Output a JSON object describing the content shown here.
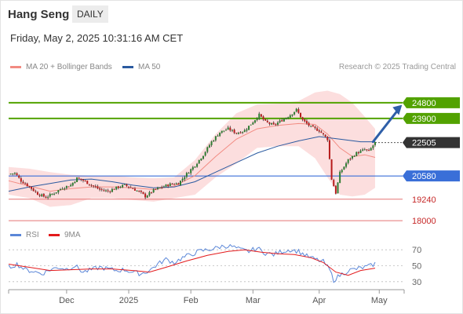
{
  "header": {
    "instrument": "Hang Seng",
    "period": "DAILY",
    "datetime": "Friday, May 2, 2025 10:31:16 AM CET",
    "credit": "Research © 2025 Trading Central"
  },
  "colors": {
    "up": "#2e7d32",
    "down": "#b71c1c",
    "ma20": "#f28b82",
    "band": "#fcd8d8",
    "ma50": "#2b5aa0",
    "resistance": "#52a200",
    "support_blue": "#3a6fd8",
    "support_red": "#e57373",
    "rsi": "#5b87d8",
    "rsi_ma": "#e31a1c"
  },
  "chart_data": [
    {
      "type": "line",
      "title": "",
      "legend": [
        {
          "name": "MA 20 + Bollinger Bands",
          "color": "#f28b82"
        },
        {
          "name": "MA 50",
          "color": "#2b5aa0"
        }
      ],
      "x_tick_labels": [
        "Dec",
        "2025",
        "Feb",
        "Mar",
        "Apr",
        "May"
      ],
      "ylim": [
        17600,
        26200
      ],
      "price_levels": [
        {
          "label": "24800",
          "value": 24800,
          "style": "resistance"
        },
        {
          "label": "23900",
          "value": 23900,
          "style": "resistance"
        },
        {
          "label": "22505",
          "value": 22505,
          "style": "current"
        },
        {
          "label": "20580",
          "value": 20580,
          "style": "support_blue"
        },
        {
          "label": "19240",
          "value": 19240,
          "style": "support_red"
        },
        {
          "label": "18000",
          "value": 18000,
          "style": "support_red"
        }
      ],
      "price_path": [
        [
          0,
          20690
        ],
        [
          3,
          20750
        ],
        [
          6,
          20300
        ],
        [
          10,
          19960
        ],
        [
          14,
          19550
        ],
        [
          18,
          19350
        ],
        [
          22,
          19600
        ],
        [
          26,
          19900
        ],
        [
          30,
          20050
        ],
        [
          33,
          20450
        ],
        [
          36,
          20320
        ],
        [
          40,
          20050
        ],
        [
          44,
          19800
        ],
        [
          48,
          19700
        ],
        [
          52,
          19900
        ],
        [
          56,
          20050
        ],
        [
          60,
          19850
        ],
        [
          64,
          19600
        ],
        [
          66,
          19400
        ],
        [
          70,
          19750
        ],
        [
          74,
          19950
        ],
        [
          78,
          20100
        ],
        [
          82,
          20150
        ],
        [
          86,
          20700
        ],
        [
          90,
          21200
        ],
        [
          94,
          21800
        ],
        [
          98,
          22550
        ],
        [
          102,
          23100
        ],
        [
          106,
          23300
        ],
        [
          110,
          23050
        ],
        [
          114,
          23200
        ],
        [
          118,
          23700
        ],
        [
          121,
          24100
        ],
        [
          124,
          23700
        ],
        [
          128,
          23500
        ],
        [
          132,
          23800
        ],
        [
          136,
          24100
        ],
        [
          139,
          24400
        ],
        [
          142,
          23800
        ],
        [
          146,
          23400
        ],
        [
          150,
          23200
        ],
        [
          154,
          22700
        ],
        [
          156,
          20400
        ],
        [
          158,
          19600
        ],
        [
          160,
          20750
        ],
        [
          164,
          21500
        ],
        [
          168,
          21900
        ],
        [
          172,
          22100
        ],
        [
          174,
          22000
        ],
        [
          177,
          22505
        ]
      ],
      "ma20_path": [
        [
          0,
          20300
        ],
        [
          10,
          20000
        ],
        [
          20,
          19700
        ],
        [
          30,
          19850
        ],
        [
          40,
          19950
        ],
        [
          50,
          19950
        ],
        [
          60,
          19900
        ],
        [
          70,
          19800
        ],
        [
          80,
          20000
        ],
        [
          90,
          20600
        ],
        [
          100,
          21700
        ],
        [
          110,
          22700
        ],
        [
          120,
          23300
        ],
        [
          130,
          23500
        ],
        [
          140,
          23600
        ],
        [
          148,
          23550
        ],
        [
          154,
          23000
        ],
        [
          160,
          22200
        ],
        [
          166,
          21700
        ],
        [
          172,
          21800
        ],
        [
          177,
          21650
        ]
      ],
      "band_upper": [
        [
          0,
          21100
        ],
        [
          10,
          21000
        ],
        [
          20,
          20800
        ],
        [
          30,
          20650
        ],
        [
          40,
          20600
        ],
        [
          50,
          20600
        ],
        [
          60,
          20500
        ],
        [
          70,
          20450
        ],
        [
          80,
          20500
        ],
        [
          90,
          21500
        ],
        [
          100,
          23000
        ],
        [
          110,
          24200
        ],
        [
          120,
          24700
        ],
        [
          130,
          24750
        ],
        [
          140,
          24900
        ],
        [
          148,
          25400
        ],
        [
          154,
          25500
        ],
        [
          160,
          25300
        ],
        [
          166,
          24800
        ],
        [
          172,
          24000
        ],
        [
          177,
          23300
        ]
      ],
      "band_lower": [
        [
          0,
          19500
        ],
        [
          10,
          19300
        ],
        [
          20,
          18800
        ],
        [
          30,
          18900
        ],
        [
          40,
          19300
        ],
        [
          50,
          19300
        ],
        [
          60,
          19200
        ],
        [
          70,
          19100
        ],
        [
          80,
          19300
        ],
        [
          90,
          19500
        ],
        [
          100,
          20500
        ],
        [
          110,
          21300
        ],
        [
          120,
          22200
        ],
        [
          130,
          22300
        ],
        [
          140,
          22300
        ],
        [
          148,
          21600
        ],
        [
          154,
          20500
        ],
        [
          160,
          19500
        ],
        [
          166,
          19400
        ],
        [
          172,
          19500
        ],
        [
          177,
          19900
        ]
      ],
      "ma50_path": [
        [
          0,
          19700
        ],
        [
          10,
          19950
        ],
        [
          20,
          20150
        ],
        [
          30,
          20350
        ],
        [
          40,
          20400
        ],
        [
          50,
          20250
        ],
        [
          60,
          20050
        ],
        [
          70,
          19900
        ],
        [
          80,
          19950
        ],
        [
          90,
          20250
        ],
        [
          100,
          20800
        ],
        [
          110,
          21350
        ],
        [
          120,
          21900
        ],
        [
          130,
          22300
        ],
        [
          140,
          22600
        ],
        [
          150,
          22850
        ],
        [
          160,
          22700
        ],
        [
          170,
          22550
        ],
        [
          177,
          22550
        ]
      ],
      "projection_arrow": {
        "from": [
          176,
          22550
        ],
        "to": [
          190,
          24680
        ]
      }
    },
    {
      "type": "line",
      "title": "",
      "legend": [
        {
          "name": "RSI",
          "color": "#5b87d8"
        },
        {
          "name": "9MA",
          "color": "#e31a1c"
        }
      ],
      "ylim": [
        20,
        80
      ],
      "y_ticks": [
        {
          "label": "70",
          "value": 70
        },
        {
          "label": "50",
          "value": 50
        },
        {
          "label": "30",
          "value": 30
        }
      ],
      "rsi_path": [
        [
          0,
          48
        ],
        [
          4,
          52
        ],
        [
          8,
          45
        ],
        [
          12,
          43
        ],
        [
          16,
          40
        ],
        [
          20,
          45
        ],
        [
          24,
          48
        ],
        [
          28,
          46
        ],
        [
          32,
          50
        ],
        [
          36,
          42
        ],
        [
          40,
          45
        ],
        [
          44,
          48
        ],
        [
          48,
          46
        ],
        [
          52,
          44
        ],
        [
          56,
          45
        ],
        [
          60,
          42
        ],
        [
          64,
          40
        ],
        [
          68,
          44
        ],
        [
          72,
          52
        ],
        [
          76,
          58
        ],
        [
          80,
          54
        ],
        [
          84,
          60
        ],
        [
          88,
          64
        ],
        [
          92,
          68
        ],
        [
          96,
          70
        ],
        [
          100,
          72
        ],
        [
          104,
          75
        ],
        [
          108,
          74
        ],
        [
          112,
          70
        ],
        [
          116,
          68
        ],
        [
          120,
          72
        ],
        [
          124,
          66
        ],
        [
          128,
          64
        ],
        [
          132,
          68
        ],
        [
          136,
          70
        ],
        [
          140,
          68
        ],
        [
          144,
          62
        ],
        [
          148,
          58
        ],
        [
          152,
          55
        ],
        [
          155,
          45
        ],
        [
          157,
          32
        ],
        [
          160,
          38
        ],
        [
          164,
          44
        ],
        [
          168,
          46
        ],
        [
          172,
          48
        ],
        [
          175,
          50
        ],
        [
          177,
          53
        ]
      ],
      "rsi_ma_path": [
        [
          0,
          52
        ],
        [
          10,
          48
        ],
        [
          20,
          44
        ],
        [
          30,
          45
        ],
        [
          40,
          46
        ],
        [
          50,
          46
        ],
        [
          60,
          44
        ],
        [
          68,
          42
        ],
        [
          76,
          48
        ],
        [
          86,
          56
        ],
        [
          96,
          63
        ],
        [
          106,
          68
        ],
        [
          114,
          70
        ],
        [
          122,
          67
        ],
        [
          130,
          65
        ],
        [
          138,
          64
        ],
        [
          146,
          60
        ],
        [
          152,
          54
        ],
        [
          158,
          42
        ],
        [
          164,
          38
        ],
        [
          170,
          44
        ],
        [
          177,
          47
        ]
      ]
    }
  ]
}
